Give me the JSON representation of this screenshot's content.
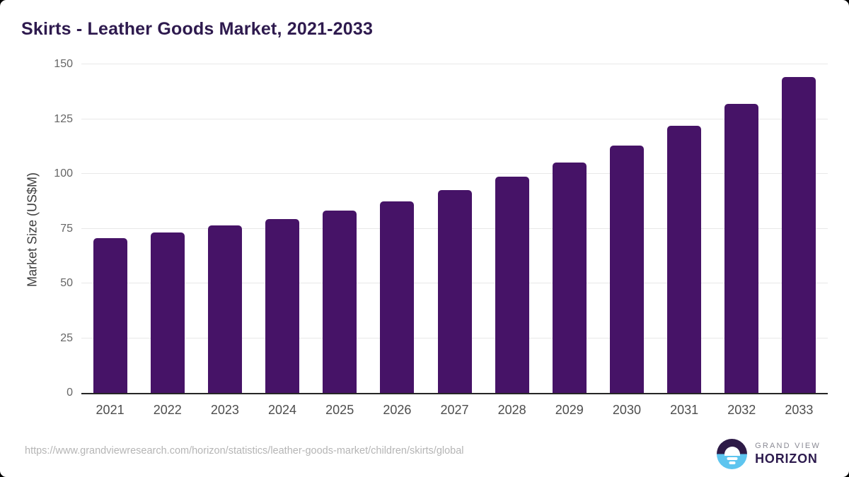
{
  "title": "Skirts - Leather Goods Market, 2021-2033",
  "chart_data": {
    "type": "bar",
    "title": "Skirts - Leather Goods Market, 2021-2033",
    "categories": [
      "2021",
      "2022",
      "2023",
      "2024",
      "2025",
      "2026",
      "2027",
      "2028",
      "2029",
      "2030",
      "2031",
      "2032",
      "2033"
    ],
    "values": [
      70.6,
      73.2,
      76.3,
      79.5,
      83.2,
      87.3,
      92.6,
      98.6,
      105.2,
      112.8,
      122.0,
      132.1,
      144.2
    ],
    "xlabel": "",
    "ylabel": "Market Size (US$M)",
    "ylim": [
      0,
      150
    ],
    "yticks": [
      0,
      25,
      50,
      75,
      100,
      125,
      150
    ],
    "grid": true,
    "legend": false,
    "bar_color": "#461367"
  },
  "colors": {
    "bar": "#461367",
    "title_text": "#2e1a4e",
    "gridline": "#e8e8e8",
    "axis_line": "#262626",
    "tick_text": "#666666",
    "logo_dark": "#2d1a47",
    "logo_blue": "#5ec5ef"
  },
  "footer": {
    "source_url": "https://www.grandviewresearch.com/horizon/statistics/leather-goods-market/children/skirts/global",
    "logo": {
      "line1": "GRAND VIEW",
      "line2": "HORIZON"
    }
  }
}
